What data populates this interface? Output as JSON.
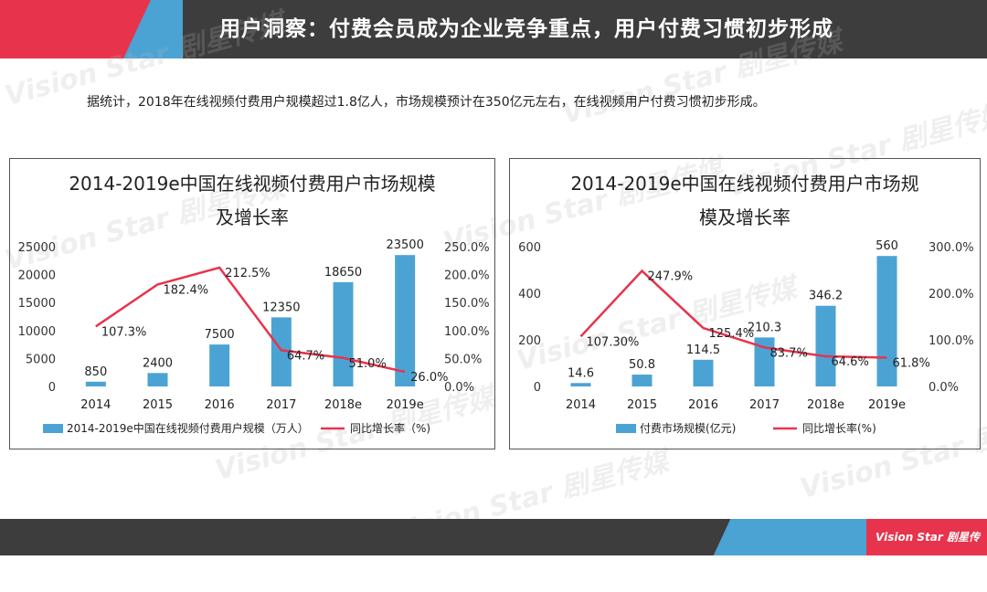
{
  "header": {
    "title": "用户洞察：付费会员成为企业竞争重点，用户付费习惯初步形成"
  },
  "intro": "据统计，2018年在线视频付费用户规模超过1.8亿人，市场规模预计在350亿元左右，在线视频用户付费习惯初步形成。",
  "watermark": "Vision Star 剧星传媒",
  "brand": "Vision Star 剧星传媒",
  "colors": {
    "bar": "#4ba3d4",
    "line": "#e8334c",
    "accent_dark": "#3d3d3d"
  },
  "chart_data": [
    {
      "type": "bar",
      "title_lines": [
        "2014-2019e中国在线视频付费用户市场规模",
        "及增长率"
      ],
      "categories": [
        "2014",
        "2015",
        "2016",
        "2017",
        "2018e",
        "2019e"
      ],
      "values": [
        850,
        2400,
        7500,
        12350,
        18650,
        23500
      ],
      "value_labels": [
        "850",
        "2400",
        "7500",
        "12350",
        "18650",
        "23500"
      ],
      "line_values": [
        107.3,
        182.4,
        212.5,
        64.7,
        51.0,
        26.0
      ],
      "line_labels": [
        "107.3%",
        "182.4%",
        "212.5%",
        "64.7%",
        "51.0%",
        "26.0%"
      ],
      "ylim": [
        0,
        25000
      ],
      "yticks": [
        "0",
        "5000",
        "10000",
        "15000",
        "20000",
        "25000"
      ],
      "y2lim": [
        0,
        250
      ],
      "y2ticks": [
        "0.0%",
        "50.0%",
        "100.0%",
        "150.0%",
        "200.0%",
        "250.0%"
      ],
      "legend": [
        "2014-2019e中国在线视频付费用户规模（万人）",
        "同比增长率（%)"
      ],
      "legend_position": "bottom"
    },
    {
      "type": "bar",
      "title_lines": [
        "2014-2019e中国在线视频付费用户市场规",
        "模及增长率"
      ],
      "categories": [
        "2014",
        "2015",
        "2016",
        "2017",
        "2018e",
        "2019e"
      ],
      "values": [
        14.6,
        50.8,
        114.5,
        210.3,
        346.2,
        560
      ],
      "value_labels": [
        "14.6",
        "50.8",
        "114.5",
        "210.3",
        "346.2",
        "560"
      ],
      "line_values": [
        107.3,
        247.9,
        125.4,
        83.7,
        64.6,
        61.8
      ],
      "line_labels": [
        "107.30%",
        "247.9%",
        "125.4%",
        "83.7%",
        "64.6%",
        "61.8%"
      ],
      "ylim": [
        0,
        600
      ],
      "yticks": [
        "0",
        "200",
        "400",
        "600"
      ],
      "y2lim": [
        0,
        300
      ],
      "y2ticks": [
        "0.0%",
        "100.0%",
        "200.0%",
        "300.0%"
      ],
      "legend": [
        "付费市场规模(亿元)",
        "同比增长率(%)"
      ],
      "legend_position": "bottom"
    }
  ]
}
